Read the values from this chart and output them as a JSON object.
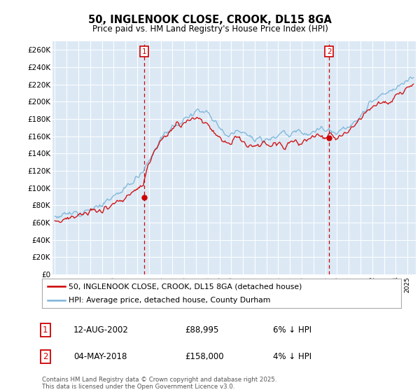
{
  "title": "50, INGLENOOK CLOSE, CROOK, DL15 8GA",
  "subtitle": "Price paid vs. HM Land Registry's House Price Index (HPI)",
  "ylabel_ticks": [
    "£0",
    "£20K",
    "£40K",
    "£60K",
    "£80K",
    "£100K",
    "£120K",
    "£140K",
    "£160K",
    "£180K",
    "£200K",
    "£220K",
    "£240K",
    "£260K"
  ],
  "ytick_values": [
    0,
    20000,
    40000,
    60000,
    80000,
    100000,
    120000,
    140000,
    160000,
    180000,
    200000,
    220000,
    240000,
    260000
  ],
  "ylim": [
    0,
    270000
  ],
  "xlim_start": 1994.8,
  "xlim_end": 2025.7,
  "hpi_color": "#7ab4d8",
  "sale_color": "#cc0000",
  "marker1_year": 2002.62,
  "marker1_price": 88995,
  "marker2_year": 2018.34,
  "marker2_price": 158000,
  "legend_label1": "50, INGLENOOK CLOSE, CROOK, DL15 8GA (detached house)",
  "legend_label2": "HPI: Average price, detached house, County Durham",
  "annotation1_date": "12-AUG-2002",
  "annotation1_price": "£88,995",
  "annotation1_detail": "6% ↓ HPI",
  "annotation2_date": "04-MAY-2018",
  "annotation2_price": "£158,000",
  "annotation2_detail": "4% ↓ HPI",
  "footer": "Contains HM Land Registry data © Crown copyright and database right 2025.\nThis data is licensed under the Open Government Licence v3.0.",
  "bg_color": "#ffffff",
  "plot_bg_color": "#dce9f5",
  "grid_color": "#ffffff",
  "vline_color": "#cc0000"
}
